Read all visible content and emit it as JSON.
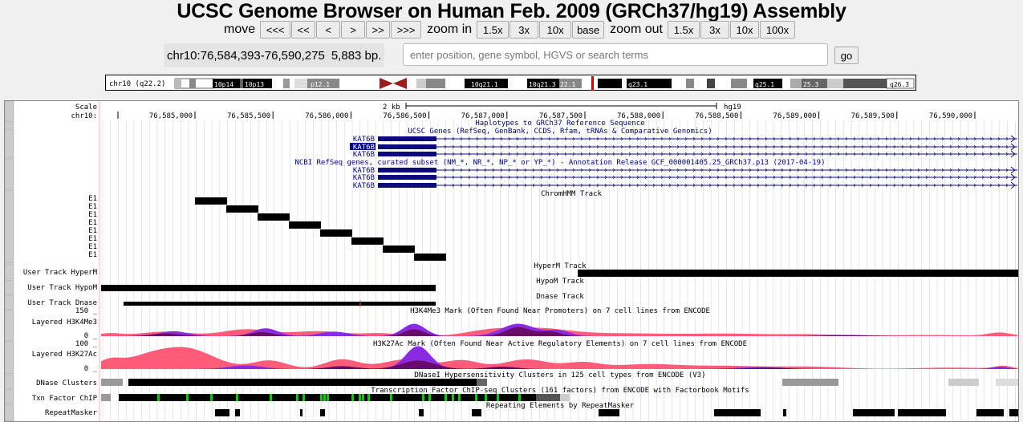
{
  "title": "UCSC Genome Browser on Human Feb. 2009 (GRCh37/hg19) Assembly",
  "nav": {
    "move_label": "move",
    "move_buttons": [
      "<<<",
      "<<",
      "<",
      ">",
      ">>",
      ">>>"
    ],
    "zoom_in_label": "zoom in",
    "zoom_in_buttons": [
      "1.5x",
      "3x",
      "10x",
      "base"
    ],
    "zoom_out_label": "zoom out",
    "zoom_out_buttons": [
      "1.5x",
      "3x",
      "10x",
      "100x"
    ]
  },
  "position": {
    "value": "chr10:76,584,393-76,590,275",
    "size": "5,883 bp.",
    "search_placeholder": "enter position, gene symbol, HGVS or search terms",
    "go_label": "go"
  },
  "ideogram": {
    "chrom_label": "chr10 (q22.2)",
    "bands": [
      "10p14",
      "10p13",
      "p12.1",
      "10q21.1",
      "10q21.3",
      "22.1",
      "22.3",
      "q23.1",
      "q25.1",
      "25.3",
      "q26.3"
    ]
  },
  "ruler": {
    "scale_label": "Scale",
    "chrom_label": "chr10:",
    "scale_text": "2 kb",
    "assembly": "hg19",
    "ticks": [
      "76,585,000",
      "76,585,500",
      "76,586,000",
      "76,586,500",
      "76,587,000",
      "76,587,500",
      "76,588,000",
      "76,588,500",
      "76,589,000",
      "76,589,500",
      "76,590,000"
    ],
    "tick_start": 76585000,
    "tick_step": 500,
    "view_start": 76584393,
    "view_end": 76590275
  },
  "track_titles": {
    "haplotypes": "Haplotypes to GRCh37 Reference Sequence",
    "ucsc_genes": "UCSC Genes (RefSeq, GenBank, CCDS, Rfam, tRNAs & Comparative Genomics)",
    "refseq": "NCBI RefSeq genes, curated subset (NM_*, NR_*, NP_* or YP_*) - Annotation Release GCF_000001405.25_GRCh37.p13 (2017-04-19)",
    "chromhmm": "ChromHMM Track",
    "hyperm": "HyperM Track",
    "hypom": "HypoM Track",
    "dnase_track": "Dnase Track",
    "h3k4me3": "H3K4Me3 Mark (Often Found Near Promoters) on 7 cell lines from ENCODE",
    "h3k27ac": "H3K27Ac Mark (Often Found Near Active Regulatory Elements) on 7 cell lines from ENCODE",
    "dnase_clusters": "DNaseI Hypersensitivity Clusters in 125 cell types from ENCODE (V3)",
    "txn_factor": "Transcription Factor ChIP-seq Clusters (161 factors) from ENCODE with Factorbook Motifs",
    "repeatmasker": "Repeating Elements by RepeatMasker"
  },
  "gene_name": "KAT6B",
  "chromhmm_label": "E1",
  "left_labels": {
    "hyperm": "User Track HyperM",
    "hypom": "User Track HypoM",
    "dnase": "User Track Dnase",
    "h3k4me3": "Layered H3K4Me3",
    "h3k4me3_max": "150 _",
    "h3k4me3_min": "0 _",
    "h3k27ac": "Layered H3K27Ac",
    "h3k27ac_max": "100 _",
    "h3k27ac_min": "0 _",
    "dnase_clusters": "DNase Clusters",
    "txn_factor": "Txn Factor ChIP",
    "repeatmasker": "RepeatMasker"
  },
  "colors": {
    "gene": "#0c0c78",
    "gene_highlight": "#000080",
    "layer_pink": "#ff5c7a",
    "layer_purple": "#8a2be2",
    "layer_dark": "#6a0a6a",
    "motif_green": "#00cc00",
    "label_blue": "#000080",
    "guideline": "#c8c8ff"
  }
}
